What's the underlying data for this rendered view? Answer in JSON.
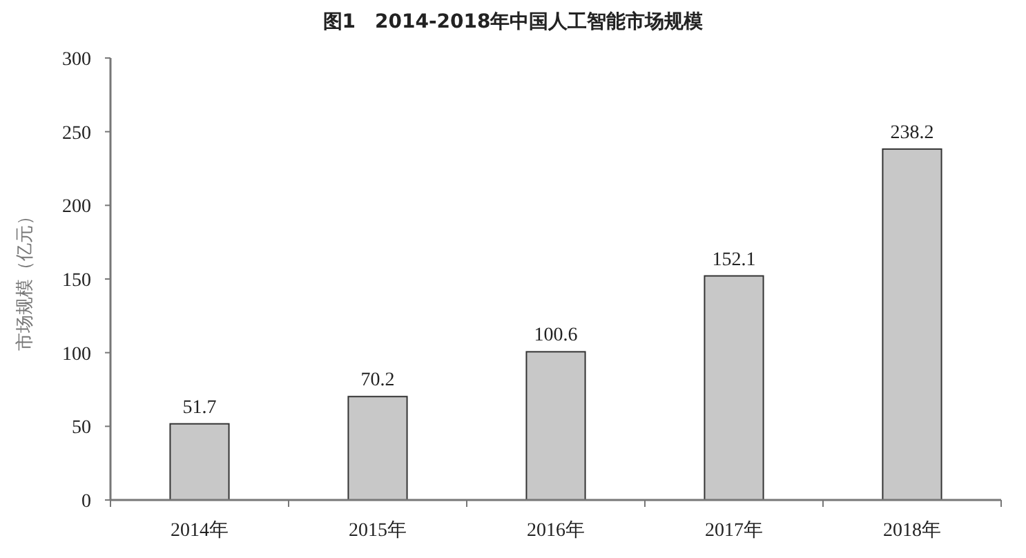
{
  "chart_data": {
    "type": "bar",
    "title": "图1　2014-2018年中国人工智能市场规模",
    "ylabel": "市场规模（亿元）",
    "categories": [
      "2014年",
      "2015年",
      "2016年",
      "2017年",
      "2018年"
    ],
    "values": [
      51.7,
      70.2,
      100.6,
      152.1,
      238.2
    ],
    "color": "#c8c8c8",
    "ylim": [
      0,
      300
    ],
    "yticks": [
      0,
      50,
      100,
      150,
      200,
      250,
      300
    ],
    "data_labels": true
  }
}
